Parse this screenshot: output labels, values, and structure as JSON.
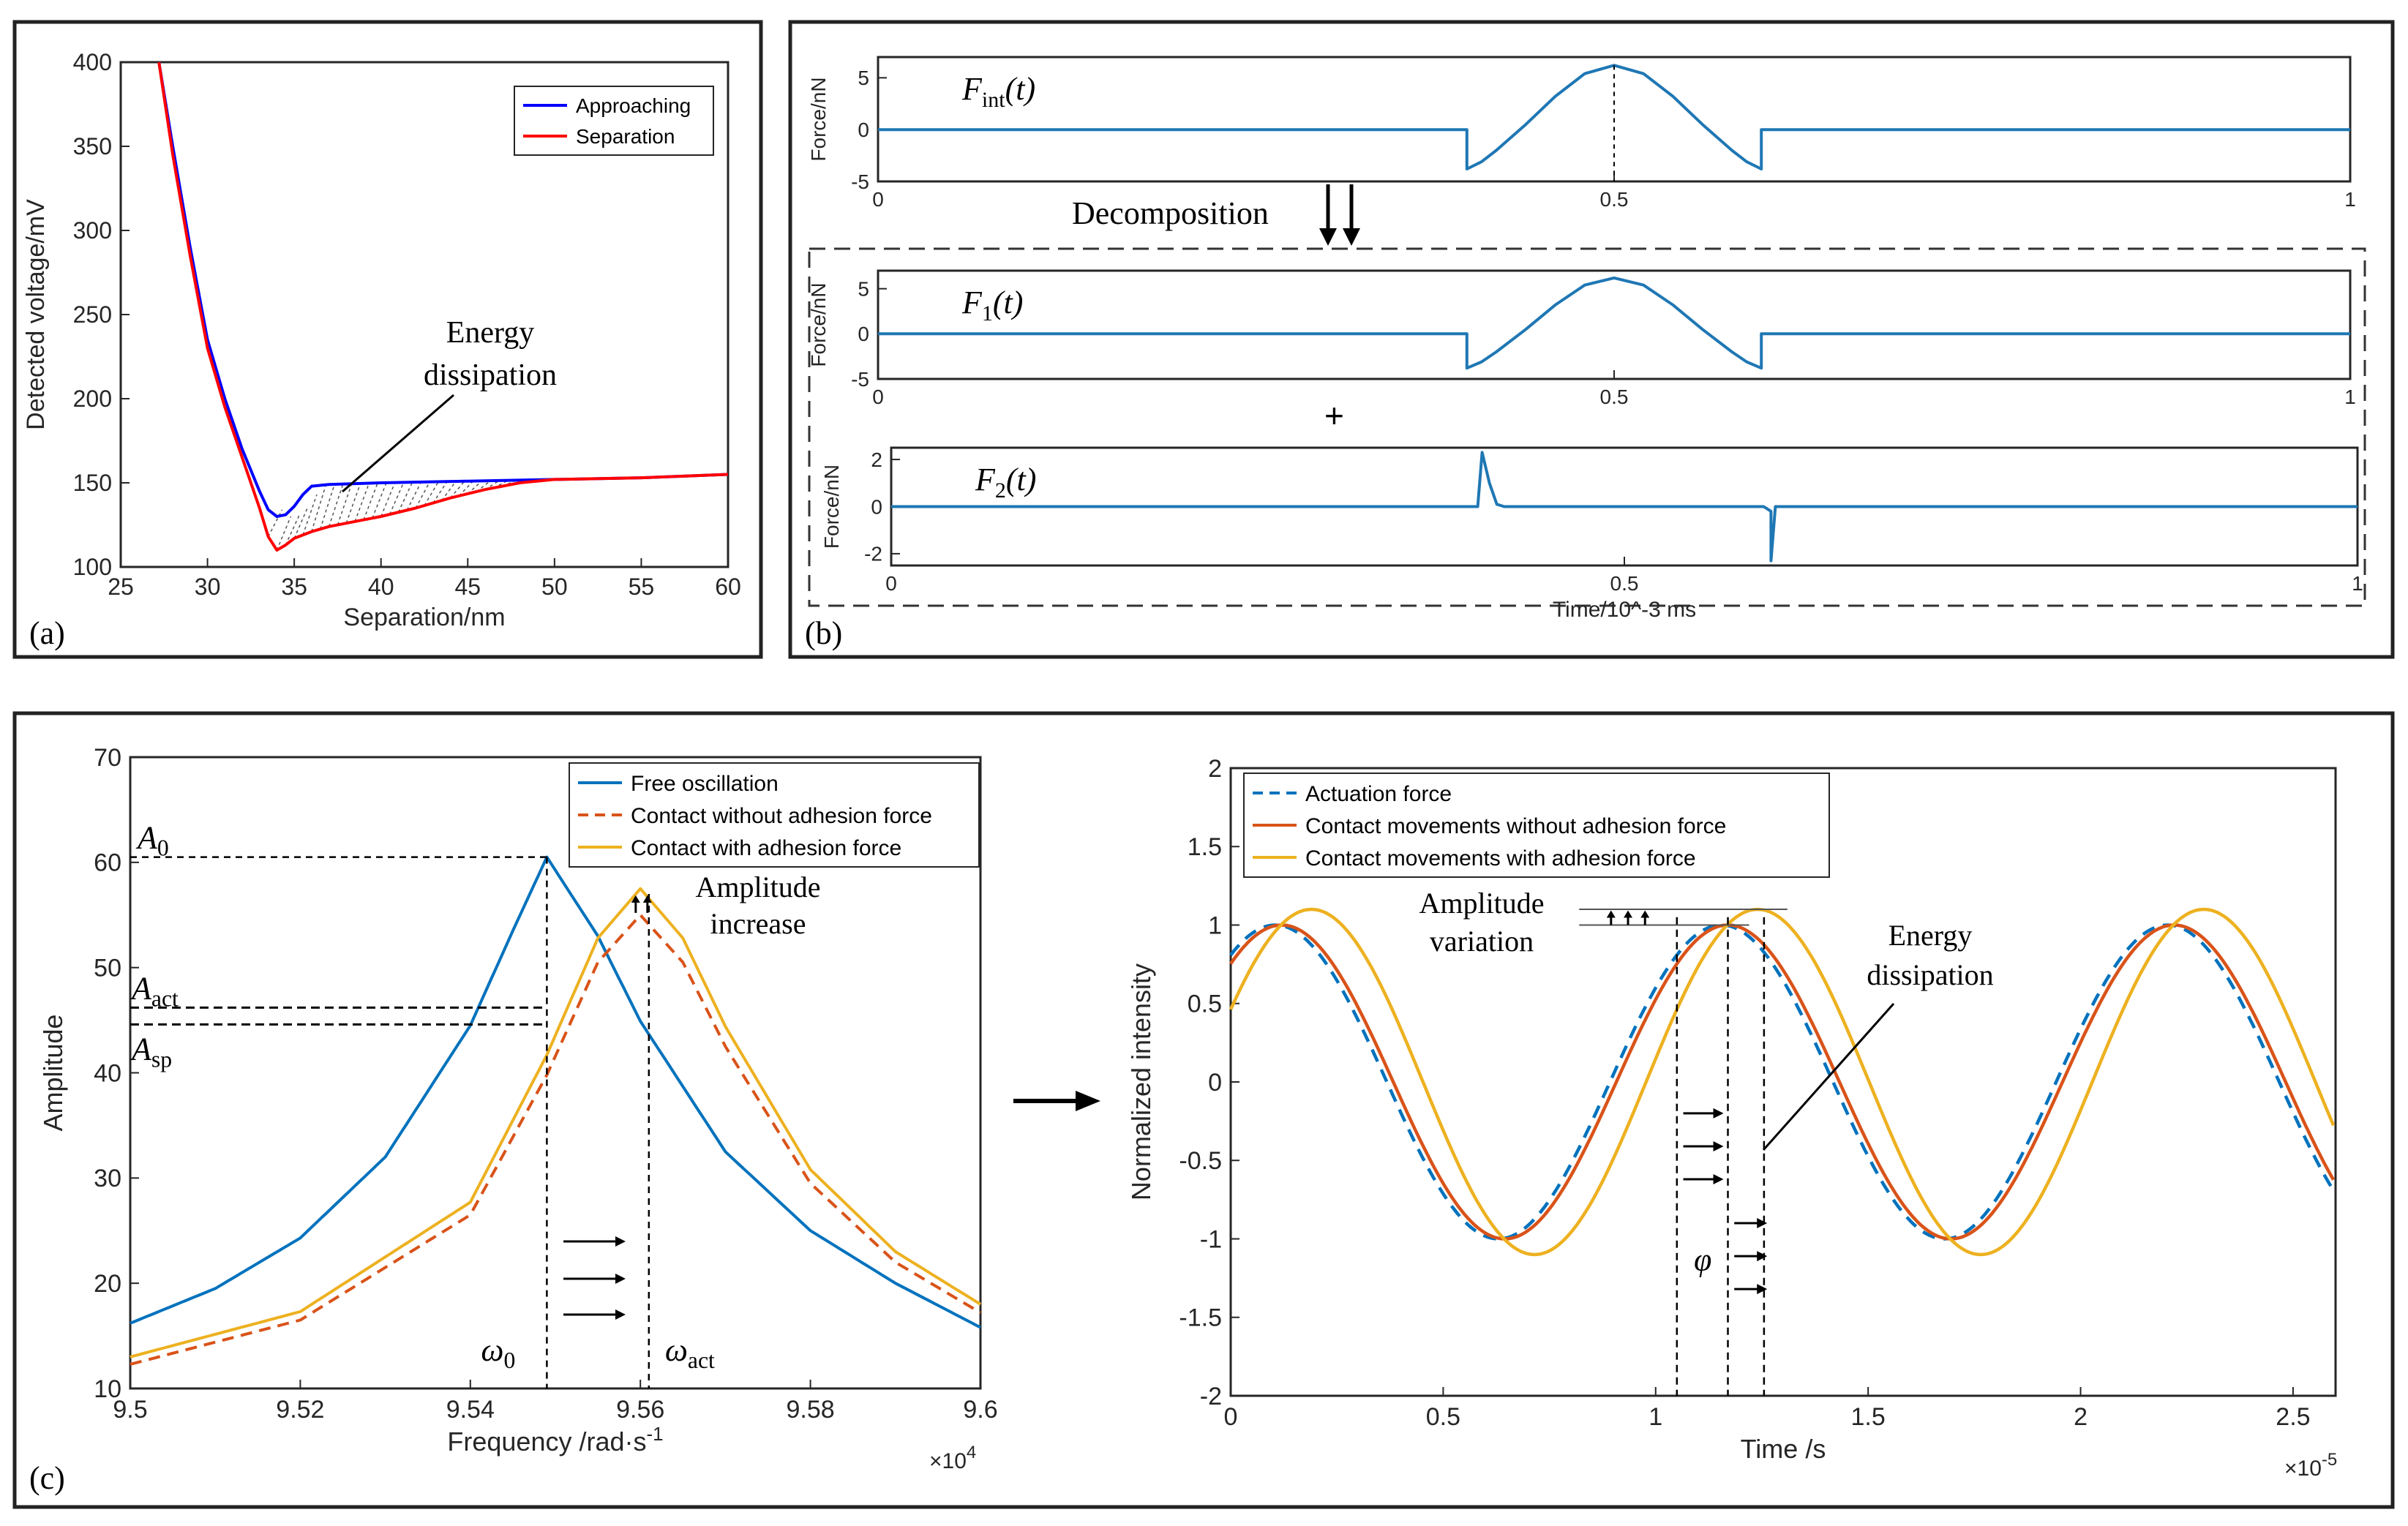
{
  "panels": {
    "a": {
      "label": "(a)"
    },
    "b": {
      "label": "(b)",
      "decomposition_label": "Decomposition",
      "plus_symbol": "+"
    },
    "c": {
      "label": "(c)"
    }
  },
  "chart_data": [
    {
      "id": "a",
      "type": "line",
      "xlabel": "Separation/nm",
      "ylabel": "Detected voltage/mV",
      "xlim": [
        25,
        60
      ],
      "ylim": [
        100,
        400
      ],
      "xticks": [
        25,
        30,
        35,
        40,
        45,
        50,
        55,
        60
      ],
      "yticks": [
        100,
        150,
        200,
        250,
        300,
        350,
        400
      ],
      "grid": false,
      "legend_position": "top-right",
      "annotations": [
        {
          "text_lines": [
            "Energy",
            "dissipation"
          ]
        }
      ],
      "series": [
        {
          "name": "Approaching",
          "color": "#0000ff",
          "x": [
            27.2,
            28,
            29,
            30,
            31,
            32,
            33,
            33.5,
            34,
            34.5,
            35,
            35.5,
            36,
            37,
            40,
            45,
            50,
            55,
            60
          ],
          "y": [
            400,
            350,
            290,
            235,
            200,
            170,
            145,
            134,
            130,
            131,
            136,
            143,
            148,
            149,
            150,
            151,
            152,
            153,
            155
          ]
        },
        {
          "name": "Separation",
          "color": "#ff0000",
          "x": [
            27.2,
            28,
            29,
            30,
            31,
            32,
            33,
            33.5,
            34,
            34.5,
            35,
            36,
            37,
            38,
            40,
            42,
            44,
            46,
            48,
            50,
            55,
            60
          ],
          "y": [
            400,
            345,
            285,
            230,
            195,
            165,
            135,
            118,
            110,
            113,
            117,
            121,
            124,
            126,
            130,
            135,
            141,
            146,
            150,
            152,
            153,
            155
          ]
        }
      ]
    },
    {
      "id": "b1",
      "type": "line",
      "title": "F_int(t)",
      "ylabel": "Force/nN",
      "xlim": [
        0,
        1
      ],
      "ylim": [
        -5,
        7
      ],
      "xticks": [
        0,
        0.5,
        1
      ],
      "yticks": [
        -5,
        0,
        5
      ],
      "series": [
        {
          "color": "#1f77b4",
          "x": [
            0,
            0.4,
            0.4,
            0.41,
            0.42,
            0.44,
            0.46,
            0.48,
            0.5,
            0.52,
            0.54,
            0.56,
            0.58,
            0.59,
            0.6,
            0.6,
            1
          ],
          "y": [
            0,
            0,
            -3.8,
            -3.1,
            -2.0,
            0.5,
            3.2,
            5.4,
            6.2,
            5.4,
            3.2,
            0.5,
            -2.0,
            -3.1,
            -3.8,
            0,
            0
          ]
        }
      ]
    },
    {
      "id": "b2",
      "type": "line",
      "title": "F_1(t)",
      "ylabel": "Force/nN",
      "xlim": [
        0,
        1
      ],
      "ylim": [
        -5,
        7
      ],
      "xticks": [
        0,
        0.5,
        1
      ],
      "yticks": [
        -5,
        0,
        5
      ],
      "series": [
        {
          "color": "#1f77b4",
          "x": [
            0,
            0.4,
            0.4,
            0.41,
            0.42,
            0.44,
            0.46,
            0.48,
            0.5,
            0.52,
            0.54,
            0.56,
            0.58,
            0.59,
            0.6,
            0.6,
            1
          ],
          "y": [
            0,
            0,
            -3.8,
            -3.1,
            -2.0,
            0.5,
            3.2,
            5.4,
            6.2,
            5.4,
            3.2,
            0.5,
            -2.0,
            -3.1,
            -3.8,
            0,
            0
          ]
        }
      ]
    },
    {
      "id": "b3",
      "type": "line",
      "title": "F_2(t)",
      "xlabel": "Time/10^-3 ms",
      "ylabel": "Force/nN",
      "xlim": [
        0,
        1
      ],
      "ylim": [
        -2.5,
        2.5
      ],
      "xticks": [
        0,
        0.5,
        1
      ],
      "yticks": [
        -2,
        0,
        2
      ],
      "series": [
        {
          "color": "#1f77b4",
          "x": [
            0,
            0.4,
            0.403,
            0.408,
            0.413,
            0.418,
            0.595,
            0.6,
            0.6,
            0.603,
            1
          ],
          "y": [
            0,
            0,
            2.3,
            1.0,
            0.1,
            0,
            0,
            -0.2,
            -2.3,
            0,
            0
          ]
        }
      ]
    },
    {
      "id": "c-left",
      "type": "line",
      "xlabel": "Frequency /rad·s",
      "xlabel_superscript": "-1",
      "ylabel": "Amplitude",
      "xlim": [
        95000,
        96000
      ],
      "ylim": [
        10,
        70
      ],
      "xticks": [
        95000,
        95200,
        95400,
        95600,
        95800,
        96000
      ],
      "xtick_labels": [
        "9.5",
        "9.52",
        "9.54",
        "9.56",
        "9.58",
        "9.6"
      ],
      "x_multiplier_label": "×10",
      "x_multiplier_exponent": "4",
      "yticks": [
        10,
        20,
        30,
        40,
        50,
        60,
        70
      ],
      "legend_position": "top-right",
      "annotations": [
        {
          "text": "A",
          "subscript": "0"
        },
        {
          "text": "A",
          "subscript": "act"
        },
        {
          "text": "A",
          "subscript": "sp"
        },
        {
          "text": "ω",
          "subscript": "0"
        },
        {
          "text": "ω",
          "subscript": "act"
        },
        {
          "text_lines": [
            "Amplitude",
            "increase"
          ]
        }
      ],
      "series": [
        {
          "name": "Free oscillation",
          "color": "#0072bd",
          "style": "solid",
          "peak_x": 95490,
          "peak_y": 60.5,
          "half_width": 60,
          "x": [
            95000,
            95100,
            95200,
            95300,
            95400,
            95450,
            95490,
            95550,
            95600,
            95700,
            95800,
            95900,
            96000
          ],
          "y": [
            16.2,
            19.5,
            24.3,
            32.0,
            44.5,
            53.5,
            60.5,
            53.0,
            44.9,
            32.5,
            25.0,
            20.0,
            15.8
          ]
        },
        {
          "name": "Contact without adhesion force",
          "color": "#d95319",
          "style": "dashed",
          "peak_x": 95600,
          "peak_y": 55.0,
          "half_width": 60,
          "x": [
            95000,
            95200,
            95400,
            95490,
            95550,
            95600,
            95650,
            95700,
            95800,
            95900,
            96000
          ],
          "y": [
            12.3,
            16.5,
            26.5,
            39.8,
            50.5,
            55.0,
            50.5,
            42.5,
            29.5,
            22.0,
            17.2
          ]
        },
        {
          "name": "Contact with adhesion force",
          "color": "#edb120",
          "style": "solid",
          "peak_x": 95600,
          "peak_y": 57.5,
          "half_width": 60,
          "x": [
            95000,
            95200,
            95400,
            95490,
            95550,
            95600,
            95650,
            95700,
            95800,
            95900,
            96000
          ],
          "y": [
            13.0,
            17.3,
            27.7,
            41.7,
            52.8,
            57.5,
            52.8,
            44.4,
            30.8,
            23.0,
            18.0
          ]
        }
      ]
    },
    {
      "id": "c-right",
      "type": "line",
      "xlabel": "Time /s",
      "ylabel": "Normalized intensity",
      "xlim": [
        0,
        2.6e-05
      ],
      "ylim": [
        -2,
        2
      ],
      "xticks": [
        0,
        5e-06,
        1e-05,
        1.5e-05,
        2e-05,
        2.5e-05
      ],
      "xtick_labels": [
        "0",
        "0.5",
        "1",
        "1.5",
        "2",
        "2.5"
      ],
      "x_multiplier_label": "×10",
      "x_multiplier_exponent": "-5",
      "yticks": [
        -2,
        -1.5,
        -1,
        -0.5,
        0,
        0.5,
        1,
        1.5,
        2
      ],
      "ytick_labels": [
        "-2",
        "-1.5",
        "-1",
        "-0.5",
        "0",
        "0.5",
        "1",
        "1.5",
        "2"
      ],
      "legend_position": "top-left",
      "annotations": [
        {
          "text_lines": [
            "Amplitude",
            "variation"
          ]
        },
        {
          "text_lines": [
            "Energy",
            "dissipation"
          ]
        },
        {
          "text": "φ"
        }
      ],
      "series": [
        {
          "name": "Actuation force",
          "color": "#0072bd",
          "style": "dashed",
          "amplitude": 1.0,
          "period": 1.05e-05,
          "peak_time": 1.05e-06
        },
        {
          "name": "Contact movements without adhesion force",
          "color": "#d95319",
          "style": "solid",
          "amplitude": 1.0,
          "period": 1.05e-05,
          "peak_time": 1.17e-05
        },
        {
          "name": "Contact movements with adhesion force",
          "color": "#edb120",
          "style": "solid",
          "amplitude": 1.1,
          "period": 1.05e-05,
          "peak_time": 1.24e-05
        }
      ]
    }
  ]
}
